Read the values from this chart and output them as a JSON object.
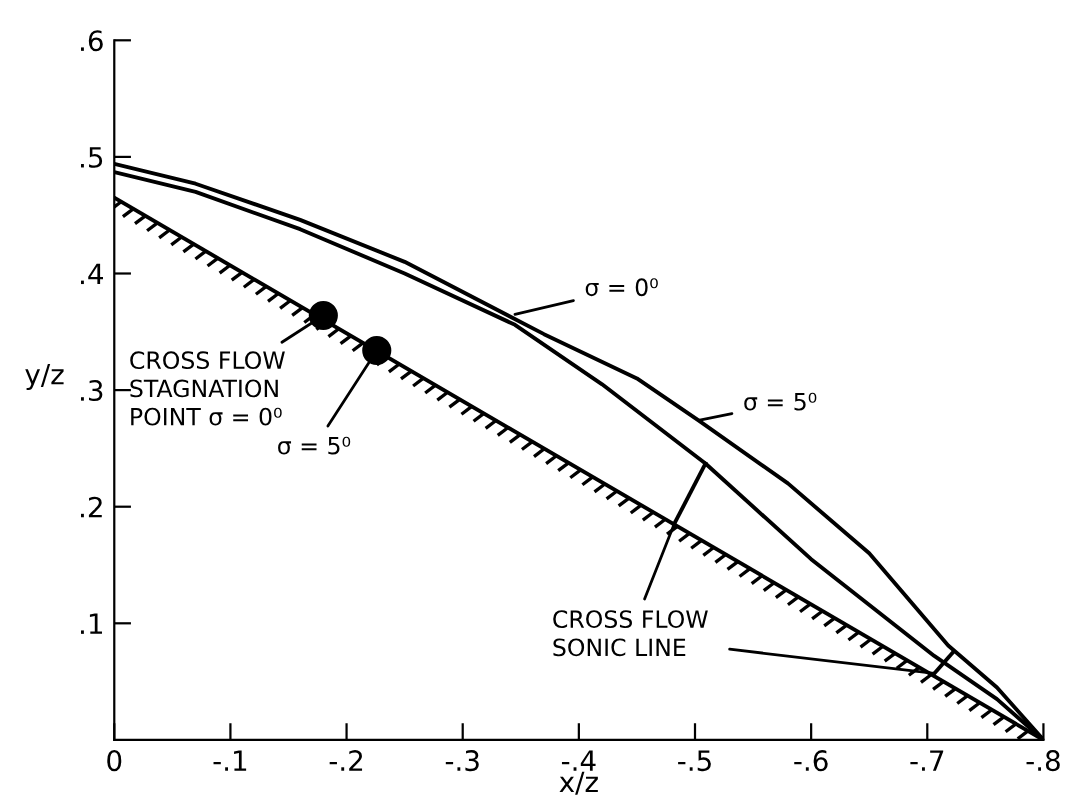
{
  "chart_data": {
    "type": "line",
    "xlabel": "x/z",
    "ylabel": "y/z",
    "xlim": [
      0,
      -0.8
    ],
    "xticks": [
      0,
      {
        "value": -0.1,
        "label": "-.1"
      },
      {
        "value": -0.2,
        "label": "-.2"
      },
      {
        "value": -0.3,
        "label": "-.3"
      },
      {
        "value": -0.4,
        "label": "-.4"
      },
      {
        "value": -0.5,
        "label": "-.5"
      },
      {
        "value": -0.6,
        "label": "-.6"
      },
      {
        "value": -0.7,
        "label": "-.7"
      },
      {
        "value": -0.8,
        "label": "-.8"
      }
    ],
    "ylim": [
      0,
      0.6
    ],
    "yticks": [
      {
        "value": 0.1,
        "label": ".1"
      },
      {
        "value": 0.2,
        "label": ".2"
      },
      {
        "value": 0.3,
        "label": ".3"
      },
      {
        "value": 0.4,
        "label": ".4"
      },
      {
        "value": 0.5,
        "label": ".5"
      },
      {
        "value": 0.6,
        "label": ".6"
      }
    ],
    "grid": false,
    "legend": false,
    "marker": "none",
    "line_style": "solid",
    "series": [
      {
        "color": "#000000",
        "x": [
          0,
          -0.07,
          -0.16,
          -0.25,
          -0.37,
          -0.45,
          -0.503,
          -0.58,
          -0.65,
          -0.718,
          -0.76,
          -0.8
        ],
        "values": [
          0.494,
          0.477,
          0.446,
          0.41,
          0.348,
          0.31,
          0.274,
          0.22,
          0.16,
          0.081,
          0.045,
          0
        ]
      },
      {
        "color": "#000000",
        "x": [
          0,
          -0.07,
          -0.16,
          -0.25,
          -0.345,
          -0.42,
          -0.509,
          -0.6,
          -0.706,
          -0.76,
          -0.8
        ],
        "values": [
          0.487,
          0.47,
          0.438,
          0.4,
          0.356,
          0.305,
          0.237,
          0.155,
          0.072,
          0.035,
          0
        ]
      },
      {
        "color": "#000000",
        "x": [
          0,
          -0.8
        ],
        "values": [
          0.465,
          0
        ]
      },
      {
        "type": "scatter",
        "color": "#000000",
        "marker": "circle",
        "x": [
          -0.18,
          -0.226
        ],
        "values": [
          0.364,
          0.334
        ]
      },
      {
        "color": "#000000",
        "x": [
          -0.482,
          -0.509
        ],
        "values": [
          0.185,
          0.237
        ]
      },
      {
        "color": "#000000",
        "x": [
          -0.706,
          -0.722
        ],
        "values": [
          0.057,
          0.075
        ]
      }
    ],
    "annotations": [
      {
        "text": "σ = 0⁰",
        "x": -0.345,
        "y": 0.365
      },
      {
        "text": "σ = 5⁰",
        "x": -0.503,
        "y": 0.274
      },
      {
        "text": "CROSS FLOW\nSTAGNATION\nPOINT σ = 0⁰",
        "x": -0.18,
        "y": 0.364
      },
      {
        "text": "σ = 5⁰",
        "x": -0.226,
        "y": 0.334
      },
      {
        "text": "CROSS FLOW\nSONIC LINE",
        "x": -0.482,
        "y": 0.185
      }
    ]
  }
}
